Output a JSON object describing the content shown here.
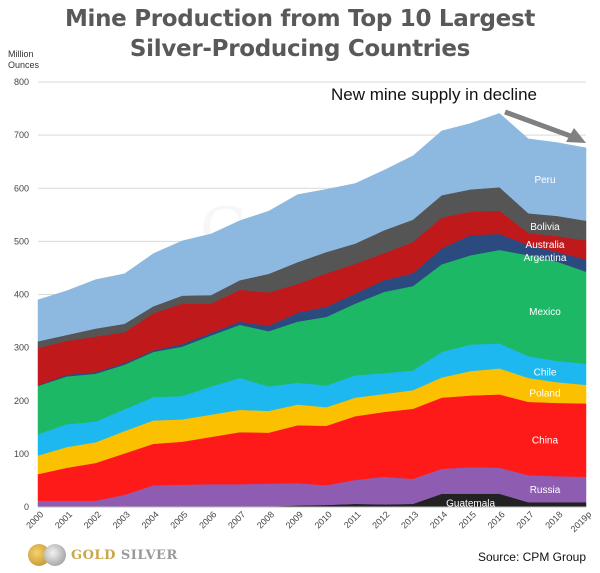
{
  "chart_data": {
    "type": "area",
    "stacked": true,
    "title_line1": "Mine Production from Top 10 Largest",
    "title_line2": "Silver-Producing  Countries",
    "ylabel_line1": "Million",
    "ylabel_line2": "Ounces",
    "ylim": [
      0,
      800
    ],
    "yticks": [
      0,
      100,
      200,
      300,
      400,
      500,
      600,
      700,
      800
    ],
    "grid": true,
    "categories": [
      "2000",
      "2001",
      "2002",
      "2003",
      "2004",
      "2005",
      "2006",
      "2007",
      "2008",
      "2009",
      "2010",
      "2011",
      "2012",
      "2013",
      "2014",
      "2015",
      "2016",
      "2017",
      "2018",
      "2019p"
    ],
    "series": [
      {
        "name": "Guatemala",
        "color": "#222222",
        "values": [
          0,
          0,
          0,
          0,
          0,
          0,
          0,
          1,
          1,
          3,
          4,
          6,
          5,
          6,
          25,
          25,
          25,
          9,
          9,
          9
        ]
      },
      {
        "name": "Russia",
        "color": "#8E5DB2",
        "values": [
          12,
          12,
          12,
          23,
          41,
          42,
          43,
          42,
          43,
          42,
          37,
          45,
          52,
          47,
          47,
          50,
          49,
          51,
          49,
          48
        ]
      },
      {
        "name": "China",
        "color": "#FF1A1A",
        "values": [
          50,
          62,
          71,
          78,
          78,
          81,
          89,
          98,
          96,
          109,
          112,
          120,
          122,
          132,
          134,
          135,
          138,
          138,
          138,
          138
        ]
      },
      {
        "name": "Poland",
        "color": "#FBC100",
        "values": [
          35,
          39,
          39,
          42,
          44,
          42,
          42,
          42,
          41,
          39,
          35,
          35,
          34,
          35,
          38,
          46,
          49,
          45,
          39,
          35
        ]
      },
      {
        "name": "Chile",
        "color": "#1DB8F0",
        "values": [
          40,
          43,
          39,
          41,
          44,
          44,
          53,
          60,
          46,
          41,
          41,
          42,
          39,
          37,
          48,
          50,
          47,
          41,
          40,
          40
        ]
      },
      {
        "name": "Mexico",
        "color": "#1DB865",
        "values": [
          91,
          90,
          90,
          84,
          85,
          93,
          96,
          100,
          104,
          115,
          129,
          135,
          153,
          159,
          165,
          168,
          176,
          190,
          187,
          173
        ]
      },
      {
        "name": "Argentina",
        "color": "#2B4A80",
        "values": [
          1,
          3,
          3,
          3,
          3,
          5,
          5,
          6,
          10,
          17,
          19,
          19,
          22,
          24,
          30,
          38,
          30,
          19,
          18,
          23
        ]
      },
      {
        "name": "Australia",
        "color": "#C0191C",
        "values": [
          70,
          64,
          67,
          58,
          70,
          76,
          55,
          60,
          63,
          54,
          63,
          56,
          51,
          59,
          58,
          44,
          44,
          23,
          30,
          36
        ]
      },
      {
        "name": "Bolivia",
        "color": "#555555",
        "values": [
          13,
          11,
          15,
          16,
          13,
          15,
          16,
          18,
          35,
          41,
          40,
          38,
          43,
          42,
          42,
          42,
          44,
          37,
          38,
          37
        ]
      },
      {
        "name": "Peru",
        "color": "#8DB9E0",
        "values": [
          78,
          83,
          92,
          94,
          99,
          103,
          115,
          112,
          118,
          127,
          118,
          113,
          113,
          120,
          121,
          124,
          139,
          140,
          138,
          137
        ]
      }
    ],
    "annotation": "New mine supply in decline",
    "source": "Source: CPM Group",
    "watermark": "GoldSilver"
  },
  "logo": {
    "gold": "GOLD",
    "silver": "SILVER"
  }
}
